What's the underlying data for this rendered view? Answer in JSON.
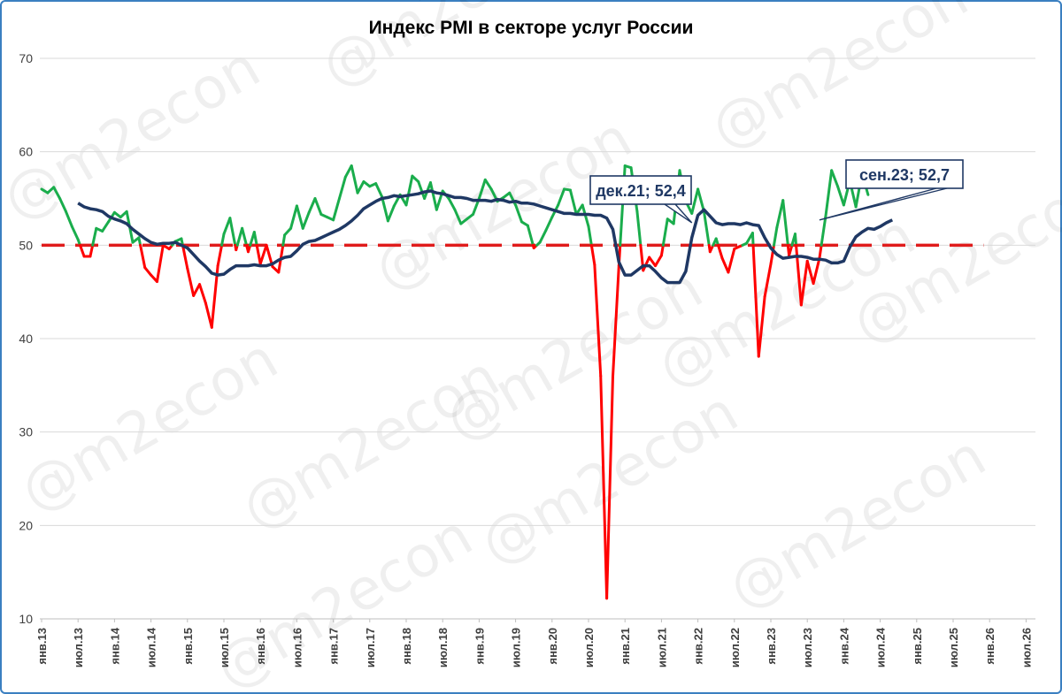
{
  "chart_data": {
    "type": "line",
    "title": "Индекс PMI в секторе услуг России",
    "xlabel": "",
    "ylabel": "",
    "ylim": [
      10,
      70
    ],
    "yticks": [
      10,
      20,
      30,
      40,
      50,
      60,
      70
    ],
    "x_start": "янв.13",
    "x_end": "июл.26",
    "x_tick_labels": [
      "янв.13",
      "июл.13",
      "янв.14",
      "июл.14",
      "янв.15",
      "июл.15",
      "янв.16",
      "июл.16",
      "янв.17",
      "июл.17",
      "янв.18",
      "июл.18",
      "янв.19",
      "июл.19",
      "янв.20",
      "июл.20",
      "янв.21",
      "июл.21",
      "янв.22",
      "июл.22",
      "янв.23",
      "июл.23",
      "янв.24",
      "июл.24",
      "янв.25",
      "июл.25",
      "янв.26",
      "июл.26"
    ],
    "threshold": 50,
    "colors": {
      "above": "#1aad4c",
      "below": "#ff0000",
      "trend": "#1f3864",
      "threshold": "#e01c1c",
      "frame": "#3a7fc1"
    },
    "watermark": "@m2econ",
    "series": [
      {
        "kind": "monthly",
        "start": "янв.13",
        "values": [
          56.0,
          55.6,
          56.2,
          55.0,
          53.6,
          52.0,
          50.6,
          48.8,
          48.8,
          51.8,
          51.5,
          52.5,
          53.5,
          53.0,
          53.6,
          50.3,
          50.8,
          47.6,
          46.8,
          46.1,
          50.0,
          49.6,
          50.4,
          50.7,
          47.5,
          44.6,
          45.8,
          43.8,
          41.2,
          47.8,
          51.2,
          52.9,
          49.5,
          51.8,
          49.3,
          51.4,
          48.0,
          50.0,
          47.7,
          47.1,
          51.1,
          51.8,
          54.2,
          51.8,
          53.5,
          55.0,
          53.3,
          53.0,
          52.7,
          55.0,
          57.3,
          58.5,
          55.6,
          56.8,
          56.3,
          56.6,
          55.2,
          52.6,
          54.2,
          55.4,
          54.3,
          57.4,
          56.8,
          55.0,
          56.7,
          53.8,
          55.8,
          55.0,
          53.8,
          52.3,
          52.8,
          53.3,
          55.0,
          57.0,
          56.0,
          54.7,
          55.1,
          55.6,
          54.3,
          52.5,
          52.1,
          49.7,
          50.3,
          51.6,
          53.0,
          54.3,
          56.0,
          55.9,
          53.3,
          54.3,
          52.0,
          47.9,
          36.0,
          12.2,
          35.9,
          47.8,
          58.5,
          58.3,
          53.6,
          47.3,
          48.7,
          47.8,
          48.9,
          52.8,
          52.3,
          58.0,
          54.7,
          53.4,
          56.0,
          53.6,
          49.3,
          50.7,
          48.6,
          47.1,
          49.6,
          49.9,
          50.2,
          51.3,
          38.1,
          44.5,
          48.0,
          51.9,
          54.8,
          48.9,
          51.2,
          43.6,
          48.3,
          45.9,
          48.6,
          53.0,
          58.0,
          56.3,
          54.3,
          56.9,
          54.1,
          57.7,
          55.4
        ],
        "coloring": "green where value is above 50, red where value is below 50"
      },
      {
        "kind": "trend",
        "start": "июл.13",
        "values": [
          54.5,
          54.1,
          53.9,
          53.8,
          53.6,
          53.1,
          52.8,
          52.6,
          52.3,
          51.7,
          51.2,
          50.7,
          50.3,
          50.1,
          50.2,
          50.2,
          50.3,
          50.0,
          49.7,
          49.0,
          48.3,
          47.7,
          47.0,
          46.8,
          46.9,
          47.4,
          47.8,
          47.8,
          47.8,
          47.9,
          47.8,
          47.8,
          48.0,
          48.4,
          48.7,
          48.8,
          49.4,
          50.1,
          50.4,
          50.5,
          50.8,
          51.1,
          51.4,
          51.7,
          52.1,
          52.6,
          53.2,
          53.9,
          54.3,
          54.7,
          55.0,
          55.1,
          55.3,
          55.2,
          55.3,
          55.4,
          55.5,
          55.7,
          55.8,
          55.6,
          55.5,
          55.3,
          55.1,
          55.1,
          55.0,
          54.8,
          54.8,
          54.8,
          54.7,
          54.9,
          54.8,
          54.6,
          54.7,
          54.5,
          54.5,
          54.4,
          54.2,
          54.0,
          53.8,
          53.6,
          53.4,
          53.4,
          53.3,
          53.3,
          53.3,
          53.2,
          53.2,
          52.9,
          51.7,
          48.2,
          46.8,
          46.8,
          47.3,
          47.8,
          47.8,
          47.2,
          46.5,
          46.0,
          46.0,
          46.0,
          47.2,
          50.8,
          53.2,
          53.8,
          53.1,
          52.4,
          52.2,
          52.3,
          52.3,
          52.2,
          52.4,
          52.2,
          52.1,
          50.8,
          49.7,
          49.0,
          48.6,
          48.7,
          48.8,
          48.8,
          48.7,
          48.5,
          48.5,
          48.4,
          48.1,
          48.1,
          48.3,
          49.8,
          50.9,
          51.4,
          51.8,
          51.7,
          52.0,
          52.4,
          52.7
        ]
      }
    ],
    "annotations": [
      {
        "label": "дек.21; 52,4",
        "x": "дек.21",
        "y": 52.4
      },
      {
        "label": "сен.23; 52,7",
        "x": "сен.23",
        "y": 52.7
      }
    ]
  }
}
